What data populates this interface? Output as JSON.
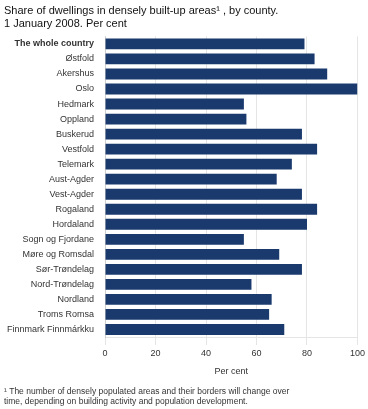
{
  "chart_data": {
    "type": "bar",
    "orientation": "horizontal",
    "title": "Share of dwellings in densely built-up areas¹ , by county.",
    "subtitle": "1 January 2008. Per cent",
    "xlabel": "Per cent",
    "annotations": [
      "¹ The number of densely populated areas and their borders will change over\ntime, depending on building activity and population development."
    ],
    "categories": [
      "The whole country",
      "Østfold",
      "Akershus",
      "Oslo",
      "Hedmark",
      "Oppland",
      "Buskerud",
      "Vestfold",
      "Telemark",
      "Aust-Agder",
      "Vest-Agder",
      "Rogaland",
      "Hordaland",
      "Sogn og Fjordane",
      "Møre og Romsdal",
      "Sør-Trøndelag",
      "Nord-Trøndelag",
      "Nordland",
      "Troms Romsa",
      "Finnmark Finnmárkku"
    ],
    "values": [
      79,
      83,
      88,
      100,
      55,
      56,
      78,
      84,
      74,
      68,
      78,
      84,
      80,
      55,
      69,
      78,
      58,
      66,
      65,
      71
    ],
    "color": "#1a3a6e",
    "xlim": [
      0,
      100
    ],
    "xticks": [
      0,
      20,
      40,
      60,
      80,
      100
    ],
    "grid": true
  }
}
